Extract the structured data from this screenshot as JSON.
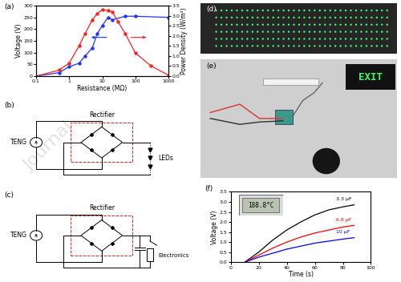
{
  "chart_data": [
    {
      "type": "line",
      "title": "(a)",
      "x_label": "Resistance (MΩ)",
      "y_label": "Voltage (V)",
      "y2_label": "Power Density (W/m²)",
      "log": "x",
      "xlim": [
        0.1,
        1000
      ],
      "xticks": [
        0.1,
        1,
        10,
        100,
        1000
      ],
      "ylim": [
        0,
        300
      ],
      "yticks": [
        0,
        50,
        100,
        150,
        200,
        250,
        300
      ],
      "y2lim": [
        0,
        3.5
      ],
      "y2ticks": [
        0.0,
        0.5,
        1.0,
        1.5,
        2.0,
        2.5,
        3.0,
        3.5
      ],
      "series": [
        {
          "color": "#1f35ff",
          "marker": "circle",
          "line_style": "solid",
          "x": [
            0.1,
            0.5,
            1,
            2,
            3,
            5,
            7,
            10,
            15,
            20,
            50,
            100,
            1000
          ],
          "values": [
            0,
            15,
            40,
            55,
            85,
            120,
            180,
            215,
            250,
            240,
            255,
            255,
            250
          ]
        },
        {
          "color": "#ff2020",
          "marker": "circle",
          "line_style": "solid",
          "axis": "y2",
          "x": [
            0.1,
            0.5,
            1,
            2,
            3,
            5,
            7,
            10,
            15,
            20,
            30,
            50,
            100,
            300,
            1000
          ],
          "values": [
            0,
            0.3,
            0.65,
            1.5,
            2.1,
            2.8,
            3.1,
            3.3,
            3.25,
            3.2,
            2.7,
            2.1,
            1.15,
            0.5,
            0.05
          ]
        }
      ]
    },
    {
      "type": "line",
      "title": "(f)",
      "x_label": "Time (s)",
      "y_label": "Voltage (V)",
      "xlim": [
        0,
        100
      ],
      "xticks": [
        0,
        20,
        40,
        60,
        80,
        100
      ],
      "ylim": [
        0.0,
        3.5
      ],
      "yticks": [
        0.0,
        0.5,
        1.0,
        1.5,
        2.0,
        2.5,
        3.0,
        3.5
      ],
      "series": [
        {
          "name": "3.3 μF",
          "color": "#000000",
          "line_style": "solid",
          "x": [
            10,
            20,
            30,
            40,
            50,
            60,
            70,
            80,
            88
          ],
          "values": [
            0,
            0.5,
            1.1,
            1.6,
            2.0,
            2.35,
            2.6,
            2.75,
            2.85
          ]
        },
        {
          "name": "6.8 μF",
          "color": "#ff0000",
          "line_style": "solid",
          "x": [
            10,
            20,
            30,
            40,
            50,
            60,
            70,
            80,
            88
          ],
          "values": [
            0,
            0.35,
            0.7,
            1.0,
            1.25,
            1.45,
            1.6,
            1.75,
            1.83
          ]
        },
        {
          "name": "10 μF",
          "color": "#0000ff",
          "line_style": "solid",
          "x": [
            10,
            20,
            30,
            40,
            50,
            60,
            70,
            80,
            88
          ],
          "values": [
            0,
            0.25,
            0.45,
            0.65,
            0.8,
            0.95,
            1.05,
            1.15,
            1.22
          ]
        }
      ]
    }
  ],
  "diagrams": [
    {
      "label": "(b)",
      "source": "TENG",
      "box": "Rectifier",
      "load": "LEDs"
    },
    {
      "label": "(c)",
      "source": "TENG",
      "box": "Rectifier",
      "load": "Electronics"
    }
  ],
  "photos": [
    {
      "label": "(d)"
    },
    {
      "label": "(e)",
      "display": "EXIT"
    }
  ],
  "inset_display": "188.8°C",
  "watermark": "Journal"
}
